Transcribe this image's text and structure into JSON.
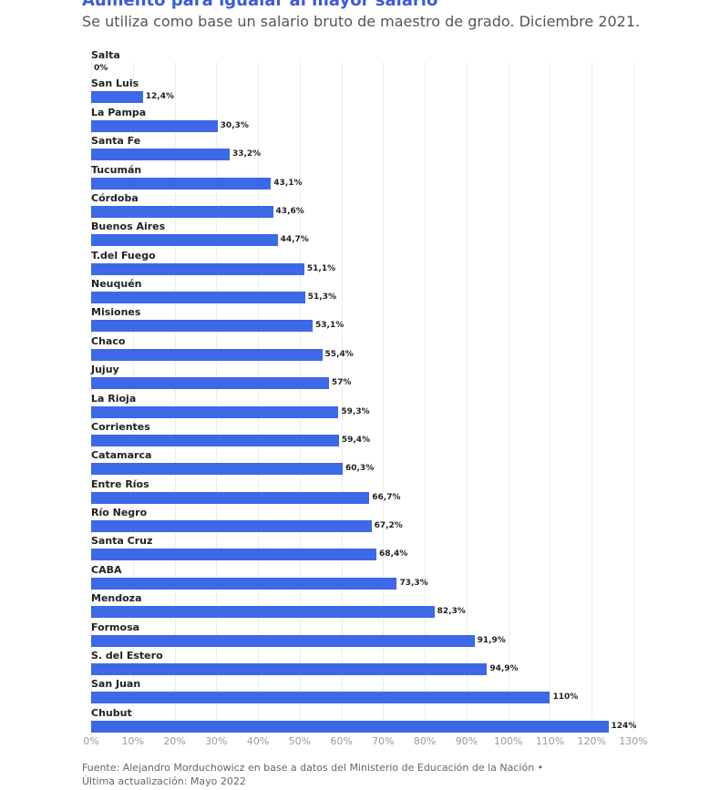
{
  "chart_data": {
    "type": "bar",
    "orientation": "horizontal",
    "title": "Aumento para igualar al mayor salario",
    "subtitle": "Se utiliza como base un salario bruto de maestro de grado. Diciembre 2021.",
    "categories": [
      "Salta",
      "San Luis",
      "La Pampa",
      "Santa Fe",
      "Tucumán",
      "Córdoba",
      "Buenos Aires",
      "T.del Fuego",
      "Neuquén",
      "Misiones",
      "Chaco",
      "Jujuy",
      "La Rioja",
      "Corrientes",
      "Catamarca",
      "Entre Ríos",
      "Río Negro",
      "Santa Cruz",
      "CABA",
      "Mendoza",
      "Formosa",
      "S. del Estero",
      "San Juan",
      "Chubut"
    ],
    "values": [
      0,
      12.4,
      30.3,
      33.2,
      43.1,
      43.6,
      44.7,
      51.1,
      51.3,
      53.1,
      55.4,
      57,
      59.3,
      59.4,
      60.3,
      66.7,
      67.2,
      68.4,
      73.3,
      82.3,
      91.9,
      94.9,
      110,
      124
    ],
    "value_labels": [
      "0%",
      "12,4%",
      "30,3%",
      "33,2%",
      "43,1%",
      "43,6%",
      "44,7%",
      "51,1%",
      "51,3%",
      "53,1%",
      "55,4%",
      "57%",
      "59,3%",
      "59,4%",
      "60,3%",
      "66,7%",
      "67,2%",
      "68,4%",
      "73,3%",
      "82,3%",
      "91,9%",
      "94,9%",
      "110%",
      "124%"
    ],
    "xlim": [
      0,
      130
    ],
    "xticks": [
      "0%",
      "10%",
      "20%",
      "30%",
      "40%",
      "50%",
      "60%",
      "70%",
      "80%",
      "90%",
      "100%",
      "110%",
      "120%",
      "130%"
    ],
    "grid": true,
    "bar_color": "#3d68e8"
  },
  "footer": {
    "source": "Fuente: Alejandro Morduchowicz en base a datos del Ministerio de Educación de la Nación •",
    "updated": "Última actualización: Mayo 2022"
  }
}
